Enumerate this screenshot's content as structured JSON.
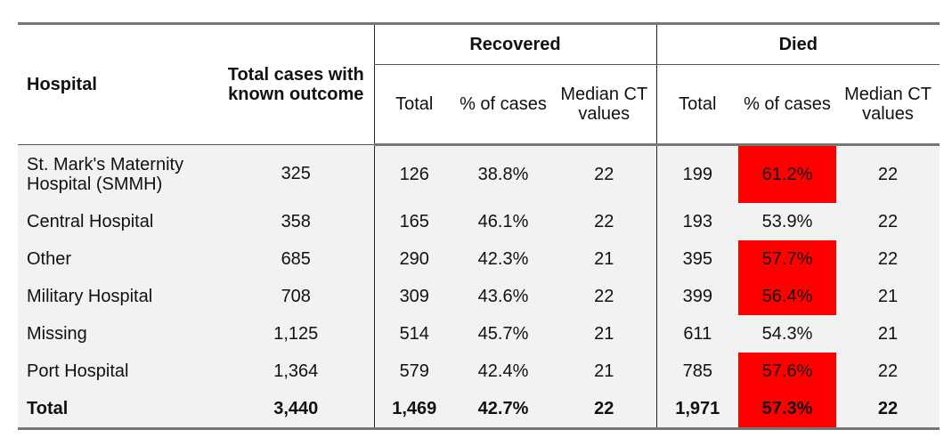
{
  "table": {
    "header": {
      "hospital": "Hospital",
      "total_cases": "Total cases with known outcome",
      "recovered": "Recovered",
      "died": "Died",
      "sub_total": "Total",
      "sub_pct": "% of cases",
      "sub_median": "Median CT values"
    },
    "highlight_color": "#ff0000",
    "rows": [
      {
        "hospital": "St. Mark's Maternity Hospital (SMMH)",
        "total": "325",
        "rec_total": "126",
        "rec_pct": "38.8%",
        "rec_ct": "22",
        "died_total": "199",
        "died_pct": "61.2%",
        "died_ct": "22",
        "highlight": true
      },
      {
        "hospital": "Central Hospital",
        "total": "358",
        "rec_total": "165",
        "rec_pct": "46.1%",
        "rec_ct": "22",
        "died_total": "193",
        "died_pct": "53.9%",
        "died_ct": "22",
        "highlight": false
      },
      {
        "hospital": "Other",
        "total": "685",
        "rec_total": "290",
        "rec_pct": "42.3%",
        "rec_ct": "21",
        "died_total": "395",
        "died_pct": "57.7%",
        "died_ct": "22",
        "highlight": true
      },
      {
        "hospital": "Military Hospital",
        "total": "708",
        "rec_total": "309",
        "rec_pct": "43.6%",
        "rec_ct": "22",
        "died_total": "399",
        "died_pct": "56.4%",
        "died_ct": "21",
        "highlight": true
      },
      {
        "hospital": "Missing",
        "total": "1,125",
        "rec_total": "514",
        "rec_pct": "45.7%",
        "rec_ct": "21",
        "died_total": "611",
        "died_pct": "54.3%",
        "died_ct": "21",
        "highlight": false
      },
      {
        "hospital": "Port Hospital",
        "total": "1,364",
        "rec_total": "579",
        "rec_pct": "42.4%",
        "rec_ct": "21",
        "died_total": "785",
        "died_pct": "57.6%",
        "died_ct": "22",
        "highlight": true
      },
      {
        "hospital": "Total",
        "total": "3,440",
        "rec_total": "1,469",
        "rec_pct": "42.7%",
        "rec_ct": "22",
        "died_total": "1,971",
        "died_pct": "57.3%",
        "died_ct": "22",
        "highlight": true
      }
    ]
  }
}
